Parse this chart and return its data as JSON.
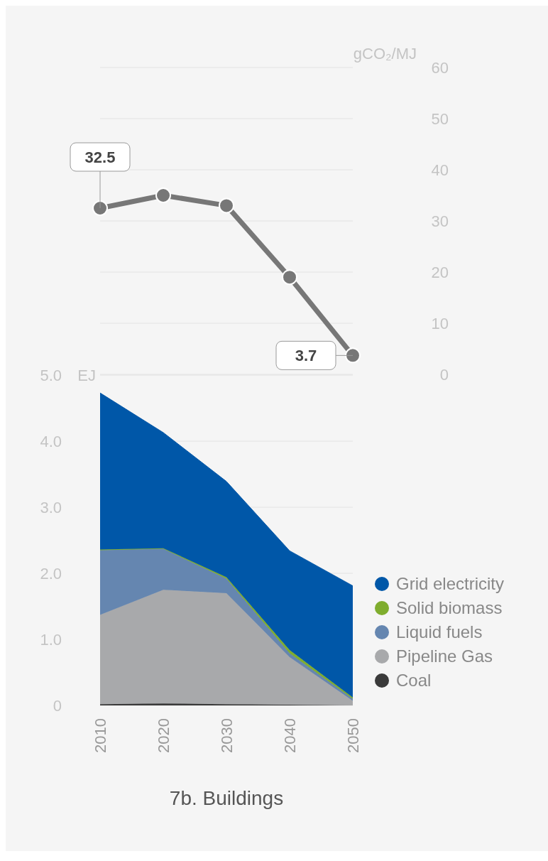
{
  "chart_data": [
    {
      "type": "line",
      "ylabel": "gCO₂/MJ",
      "x": [
        2010,
        2020,
        2030,
        2040,
        2050
      ],
      "xlim": [
        2010,
        2050
      ],
      "series": [
        {
          "color": "#777777",
          "values": [
            32.5,
            35,
            33,
            19,
            3.7
          ],
          "value_labels": [
            "32.5",
            null,
            null,
            null,
            "3.7"
          ]
        }
      ],
      "ylim": [
        0,
        60
      ],
      "yticks": [
        0,
        10,
        20,
        30,
        40,
        50,
        60
      ],
      "grid": "y",
      "marker": "circle",
      "tick_labels": "y"
    },
    {
      "type": "area",
      "stacked": true,
      "title": "7b. Buildings",
      "ylabel": "EJ",
      "x": [
        2010,
        2020,
        2030,
        2040,
        2050
      ],
      "xlim": [
        2010,
        2050
      ],
      "xticks": [
        2010,
        2020,
        2030,
        2040,
        2050
      ],
      "series": [
        {
          "name": "Coal",
          "color": "#3a3a3a",
          "values": [
            0.02,
            0.03,
            0.02,
            0.01,
            0
          ]
        },
        {
          "name": "Pipeline Gas",
          "color": "#a8a9ab",
          "values": [
            1.35,
            1.72,
            1.68,
            0.72,
            0.07
          ]
        },
        {
          "name": "Liquid fuels",
          "color": "#6586b0",
          "values": [
            0.98,
            0.62,
            0.22,
            0.06,
            0.03
          ]
        },
        {
          "name": "Solid biomass",
          "color": "#7fad2e",
          "values": [
            0.01,
            0.01,
            0.02,
            0.05,
            0.02
          ]
        },
        {
          "name": "Grid electricity",
          "color": "#0057a8",
          "values": [
            2.37,
            1.75,
            1.45,
            1.5,
            1.69
          ]
        }
      ],
      "ylim": [
        0,
        5
      ],
      "yticks": [
        0,
        {
          "value": 1,
          "label": "1.0"
        },
        {
          "value": 2,
          "label": "2.0"
        },
        {
          "value": 3,
          "label": "3.0"
        },
        {
          "value": 4,
          "label": "4.0"
        },
        {
          "value": 5,
          "label": "5.0"
        }
      ],
      "grid": "y",
      "legend": "right"
    }
  ]
}
